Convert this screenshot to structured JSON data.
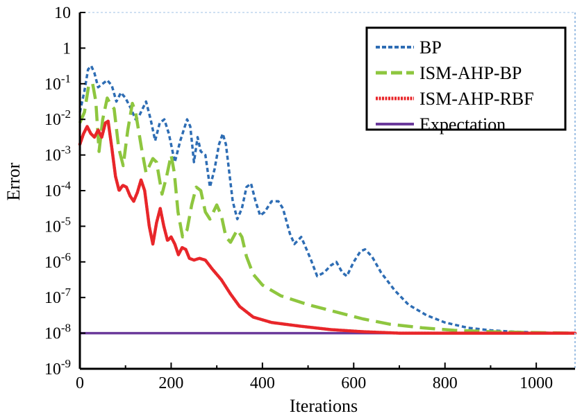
{
  "chart_data": {
    "type": "line",
    "title": "",
    "xlabel": "Iterations",
    "ylabel": "Error",
    "xlim": [
      0,
      1085
    ],
    "ylim_exp": [
      -9,
      1
    ],
    "y_scale": "log",
    "x_ticks": [
      0,
      200,
      400,
      600,
      800,
      1000
    ],
    "y_ticks": [
      {
        "base": "10",
        "exp": "-9",
        "value": -9
      },
      {
        "base": "10",
        "exp": "-8",
        "value": -8
      },
      {
        "base": "10",
        "exp": "-7",
        "value": -7
      },
      {
        "base": "10",
        "exp": "-6",
        "value": -6
      },
      {
        "base": "10",
        "exp": "-5",
        "value": -5
      },
      {
        "base": "10",
        "exp": "-4",
        "value": -4
      },
      {
        "base": "10",
        "exp": "-3",
        "value": -3
      },
      {
        "base": "10",
        "exp": "-2",
        "value": -2
      },
      {
        "base": "10",
        "exp": "-1",
        "value": -1
      },
      {
        "base": "1",
        "exp": "",
        "value": 0
      },
      {
        "base": "10",
        "exp": "",
        "value": 1
      }
    ],
    "grid": false,
    "legend_position": "top-right",
    "series": [
      {
        "name": "BP",
        "color": "#2e6db4",
        "style": "short-dash",
        "points": [
          [
            0,
            -1.8
          ],
          [
            10,
            -1.2
          ],
          [
            18,
            -0.6
          ],
          [
            25,
            -0.5
          ],
          [
            32,
            -0.7
          ],
          [
            40,
            -1.1
          ],
          [
            50,
            -1.0
          ],
          [
            60,
            -0.9
          ],
          [
            70,
            -1.05
          ],
          [
            80,
            -1.5
          ],
          [
            90,
            -1.25
          ],
          [
            100,
            -1.4
          ],
          [
            112,
            -1.7
          ],
          [
            122,
            -2.0
          ],
          [
            130,
            -1.9
          ],
          [
            145,
            -1.5
          ],
          [
            155,
            -2.0
          ],
          [
            165,
            -2.6
          ],
          [
            175,
            -2.1
          ],
          [
            185,
            -2.0
          ],
          [
            195,
            -2.4
          ],
          [
            208,
            -3.2
          ],
          [
            220,
            -2.6
          ],
          [
            235,
            -2.0
          ],
          [
            242,
            -2.2
          ],
          [
            250,
            -3.2
          ],
          [
            258,
            -2.5
          ],
          [
            265,
            -2.9
          ],
          [
            275,
            -3.0
          ],
          [
            285,
            -3.9
          ],
          [
            295,
            -3.4
          ],
          [
            305,
            -2.7
          ],
          [
            313,
            -2.4
          ],
          [
            320,
            -2.7
          ],
          [
            335,
            -4.3
          ],
          [
            345,
            -4.8
          ],
          [
            355,
            -4.5
          ],
          [
            365,
            -3.9
          ],
          [
            375,
            -3.8
          ],
          [
            385,
            -4.3
          ],
          [
            395,
            -4.7
          ],
          [
            405,
            -4.6
          ],
          [
            420,
            -4.3
          ],
          [
            435,
            -4.3
          ],
          [
            445,
            -4.5
          ],
          [
            460,
            -5.2
          ],
          [
            470,
            -5.5
          ],
          [
            485,
            -5.3
          ],
          [
            495,
            -5.6
          ],
          [
            505,
            -5.9
          ],
          [
            520,
            -6.4
          ],
          [
            535,
            -6.3
          ],
          [
            550,
            -6.1
          ],
          [
            562,
            -6.0
          ],
          [
            575,
            -6.3
          ],
          [
            585,
            -6.4
          ],
          [
            600,
            -6.0
          ],
          [
            615,
            -5.7
          ],
          [
            625,
            -5.65
          ],
          [
            640,
            -5.85
          ],
          [
            660,
            -6.3
          ],
          [
            690,
            -6.8
          ],
          [
            720,
            -7.2
          ],
          [
            760,
            -7.5
          ],
          [
            800,
            -7.7
          ],
          [
            850,
            -7.85
          ],
          [
            900,
            -7.92
          ],
          [
            950,
            -7.96
          ],
          [
            1000,
            -7.98
          ],
          [
            1050,
            -8.0
          ],
          [
            1085,
            -8.0
          ]
        ]
      },
      {
        "name": "ISM-AHP-BP",
        "color": "#8ec63f",
        "style": "long-dash",
        "points": [
          [
            0,
            -2.1
          ],
          [
            10,
            -1.8
          ],
          [
            20,
            -1.0
          ],
          [
            28,
            -1.0
          ],
          [
            35,
            -1.5
          ],
          [
            42,
            -2.9
          ],
          [
            50,
            -2.0
          ],
          [
            60,
            -1.4
          ],
          [
            68,
            -1.6
          ],
          [
            75,
            -1.7
          ],
          [
            85,
            -2.8
          ],
          [
            95,
            -3.3
          ],
          [
            105,
            -2.3
          ],
          [
            115,
            -1.55
          ],
          [
            122,
            -1.8
          ],
          [
            135,
            -2.8
          ],
          [
            145,
            -3.5
          ],
          [
            160,
            -3.1
          ],
          [
            168,
            -3.2
          ],
          [
            180,
            -4.1
          ],
          [
            190,
            -3.6
          ],
          [
            200,
            -3.0
          ],
          [
            207,
            -3.5
          ],
          [
            215,
            -4.6
          ],
          [
            225,
            -5.3
          ],
          [
            235,
            -5.1
          ],
          [
            245,
            -4.4
          ],
          [
            255,
            -3.9
          ],
          [
            265,
            -4.0
          ],
          [
            275,
            -4.6
          ],
          [
            285,
            -4.8
          ],
          [
            300,
            -4.4
          ],
          [
            310,
            -4.7
          ],
          [
            320,
            -5.3
          ],
          [
            330,
            -5.45
          ],
          [
            345,
            -5.1
          ],
          [
            355,
            -5.3
          ],
          [
            365,
            -5.85
          ],
          [
            380,
            -6.35
          ],
          [
            400,
            -6.65
          ],
          [
            440,
            -6.95
          ],
          [
            500,
            -7.2
          ],
          [
            560,
            -7.4
          ],
          [
            620,
            -7.6
          ],
          [
            680,
            -7.75
          ],
          [
            750,
            -7.85
          ],
          [
            820,
            -7.92
          ],
          [
            900,
            -7.96
          ],
          [
            980,
            -7.98
          ],
          [
            1085,
            -8.0
          ]
        ]
      },
      {
        "name": "ISM-AHP-RBF",
        "color": "#e8262a",
        "style": "solid",
        "points": [
          [
            0,
            -2.7
          ],
          [
            8,
            -2.4
          ],
          [
            16,
            -2.2
          ],
          [
            24,
            -2.4
          ],
          [
            32,
            -2.5
          ],
          [
            40,
            -2.3
          ],
          [
            48,
            -2.5
          ],
          [
            56,
            -2.1
          ],
          [
            62,
            -2.05
          ],
          [
            70,
            -2.8
          ],
          [
            78,
            -3.6
          ],
          [
            86,
            -4.0
          ],
          [
            94,
            -3.85
          ],
          [
            102,
            -3.9
          ],
          [
            110,
            -4.15
          ],
          [
            118,
            -4.3
          ],
          [
            126,
            -4.05
          ],
          [
            134,
            -3.7
          ],
          [
            142,
            -4.0
          ],
          [
            152,
            -5.0
          ],
          [
            160,
            -5.5
          ],
          [
            168,
            -4.9
          ],
          [
            176,
            -4.5
          ],
          [
            184,
            -5.0
          ],
          [
            192,
            -5.4
          ],
          [
            200,
            -5.3
          ],
          [
            208,
            -5.5
          ],
          [
            216,
            -5.8
          ],
          [
            224,
            -5.6
          ],
          [
            232,
            -5.65
          ],
          [
            240,
            -5.9
          ],
          [
            250,
            -5.95
          ],
          [
            262,
            -5.9
          ],
          [
            275,
            -5.95
          ],
          [
            290,
            -6.2
          ],
          [
            310,
            -6.5
          ],
          [
            330,
            -6.9
          ],
          [
            350,
            -7.25
          ],
          [
            380,
            -7.55
          ],
          [
            420,
            -7.7
          ],
          [
            480,
            -7.8
          ],
          [
            550,
            -7.9
          ],
          [
            620,
            -7.96
          ],
          [
            700,
            -8.0
          ],
          [
            800,
            -8.0
          ],
          [
            900,
            -8.0
          ],
          [
            1000,
            -8.0
          ],
          [
            1085,
            -8.0
          ]
        ]
      },
      {
        "name": "Expectation",
        "color": "#6b3a9b",
        "style": "solid-flat",
        "points": [
          [
            0,
            -8.0
          ],
          [
            1085,
            -8.0
          ]
        ]
      }
    ]
  }
}
